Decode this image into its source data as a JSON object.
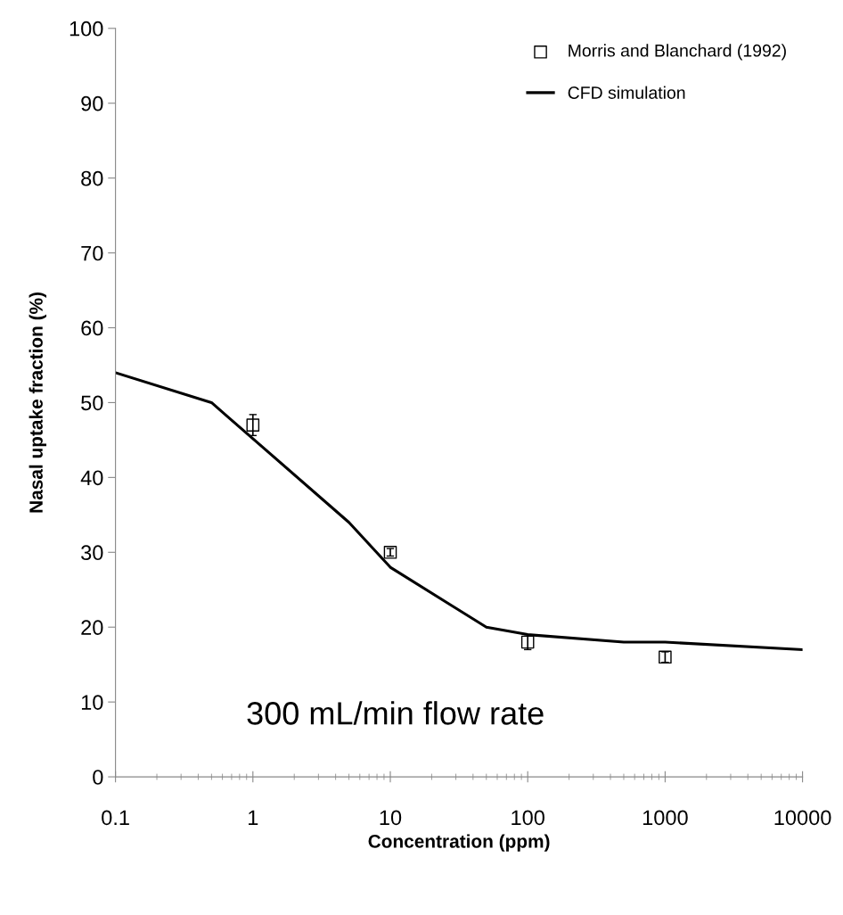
{
  "chart_data": {
    "type": "line",
    "xlabel": "Concentration (ppm)",
    "ylabel": "Nasal uptake fraction (%)",
    "log": "x",
    "xlim": [
      0.1,
      10000
    ],
    "xticks": [
      0.1,
      1,
      10,
      100,
      1000,
      10000
    ],
    "ylim": [
      0,
      100
    ],
    "yticks": [
      0,
      10,
      20,
      30,
      40,
      50,
      60,
      70,
      80,
      90,
      100
    ],
    "grid": false,
    "legend": "top right",
    "annotations": [
      "300 mL/min flow rate"
    ],
    "series": [
      {
        "name": "Morris and Blanchard (1992)",
        "type": "scatter",
        "marker": "square",
        "color": "#000000",
        "x": [
          1,
          10,
          100,
          1000
        ],
        "values": [
          47,
          30,
          18,
          16
        ],
        "errors": [
          1.4,
          0.5,
          1,
          0.7
        ]
      },
      {
        "name": "CFD simulation",
        "marker": "none",
        "line_style": "solid",
        "color": "#000000",
        "x": [
          0.1,
          0.5,
          5,
          10,
          50,
          100,
          500,
          1000,
          10000
        ],
        "values": [
          54,
          50,
          34,
          28,
          20,
          19,
          18,
          18,
          17
        ]
      }
    ]
  }
}
